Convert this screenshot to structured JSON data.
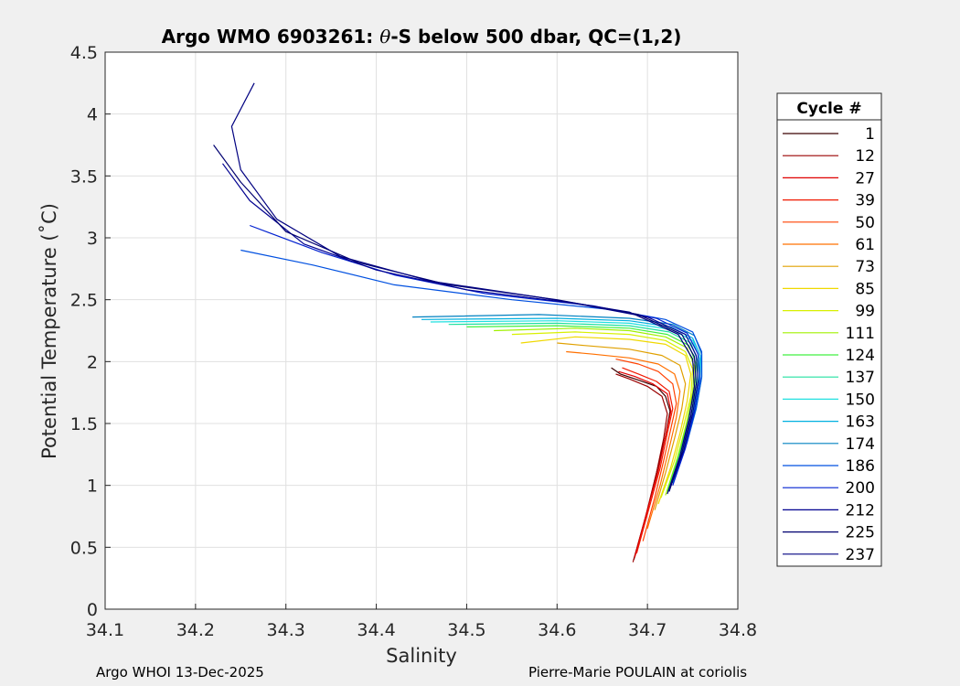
{
  "chart_data": {
    "type": "line",
    "title_prefix": "Argo WMO 6903261: ",
    "title_theta": "θ",
    "title_suffix": "-S below 500 dbar,  QC=(1,2)",
    "xlabel": "Salinity",
    "ylabel": "Potential Temperature (˚C)",
    "xlim": [
      34.1,
      34.8
    ],
    "ylim": [
      0,
      4.5
    ],
    "xticks": [
      "34.1",
      "34.2",
      "34.3",
      "34.4",
      "34.5",
      "34.6",
      "34.7",
      "34.8"
    ],
    "yticks": [
      "0",
      "0.5",
      "1",
      "1.5",
      "2",
      "2.5",
      "3",
      "3.5",
      "4",
      "4.5"
    ],
    "grid": true,
    "legend": {
      "title": "Cycle #",
      "position": "right",
      "entries": [
        {
          "label": "1",
          "color": "#3a0000"
        },
        {
          "label": "12",
          "color": "#9a0000"
        },
        {
          "label": "27",
          "color": "#e00000"
        },
        {
          "label": "39",
          "color": "#f01800"
        },
        {
          "label": "50",
          "color": "#ff4000"
        },
        {
          "label": "61",
          "color": "#ff7000"
        },
        {
          "label": "73",
          "color": "#e0a000"
        },
        {
          "label": "85",
          "color": "#f0d800"
        },
        {
          "label": "99",
          "color": "#d8f000"
        },
        {
          "label": "111",
          "color": "#a0f000"
        },
        {
          "label": "124",
          "color": "#40f040"
        },
        {
          "label": "137",
          "color": "#20e0a0"
        },
        {
          "label": "150",
          "color": "#20e0e0"
        },
        {
          "label": "163",
          "color": "#00b0e0"
        },
        {
          "label": "174",
          "color": "#0080c0"
        },
        {
          "label": "186",
          "color": "#0050e0"
        },
        {
          "label": "200",
          "color": "#0020d0"
        },
        {
          "label": "212",
          "color": "#000090"
        },
        {
          "label": "225",
          "color": "#000070"
        },
        {
          "label": "237",
          "color": "#000080"
        }
      ]
    },
    "series": [
      {
        "name": "1",
        "color": "#3a0000",
        "x": [
          34.685,
          34.7,
          34.71,
          34.72,
          34.725,
          34.72,
          34.71,
          34.69,
          34.67,
          34.66
        ],
        "y": [
          0.4,
          0.8,
          1.1,
          1.4,
          1.6,
          1.72,
          1.8,
          1.85,
          1.9,
          1.95
        ]
      },
      {
        "name": "12",
        "color": "#9a0000",
        "x": [
          34.684,
          34.698,
          34.71,
          34.718,
          34.722,
          34.716,
          34.7,
          34.68,
          34.665
        ],
        "y": [
          0.38,
          0.75,
          1.1,
          1.38,
          1.58,
          1.72,
          1.8,
          1.86,
          1.9
        ]
      },
      {
        "name": "27",
        "color": "#e00000",
        "x": [
          34.686,
          34.7,
          34.712,
          34.72,
          34.726,
          34.722,
          34.706,
          34.686,
          34.668
        ],
        "y": [
          0.42,
          0.8,
          1.12,
          1.4,
          1.6,
          1.74,
          1.82,
          1.88,
          1.92
        ]
      },
      {
        "name": "39",
        "color": "#f01800",
        "x": [
          34.688,
          34.702,
          34.714,
          34.722,
          34.728,
          34.724,
          34.71,
          34.69,
          34.672
        ],
        "y": [
          0.45,
          0.82,
          1.14,
          1.42,
          1.62,
          1.76,
          1.84,
          1.9,
          1.95
        ]
      },
      {
        "name": "50",
        "color": "#ff4000",
        "x": [
          34.695,
          34.708,
          34.718,
          34.726,
          34.732,
          34.728,
          34.712,
          34.69,
          34.665
        ],
        "y": [
          0.55,
          0.9,
          1.2,
          1.46,
          1.66,
          1.82,
          1.92,
          1.98,
          2.02
        ]
      },
      {
        "name": "61",
        "color": "#ff7000",
        "x": [
          34.7,
          34.714,
          34.724,
          34.732,
          34.736,
          34.73,
          34.712,
          34.68,
          34.64,
          34.61
        ],
        "y": [
          0.65,
          1.0,
          1.3,
          1.55,
          1.76,
          1.9,
          1.98,
          2.03,
          2.06,
          2.08
        ]
      },
      {
        "name": "73",
        "color": "#e0a000",
        "x": [
          34.708,
          34.72,
          34.73,
          34.738,
          34.742,
          34.736,
          34.716,
          34.68,
          34.63,
          34.6
        ],
        "y": [
          0.8,
          1.1,
          1.38,
          1.62,
          1.82,
          1.97,
          2.05,
          2.1,
          2.13,
          2.15
        ]
      },
      {
        "name": "85",
        "color": "#f0d800",
        "x": [
          34.712,
          34.726,
          34.736,
          34.744,
          34.748,
          34.742,
          34.72,
          34.68,
          34.62,
          34.56
        ],
        "y": [
          0.85,
          1.15,
          1.42,
          1.68,
          1.9,
          2.05,
          2.14,
          2.18,
          2.2,
          2.15
        ]
      },
      {
        "name": "99",
        "color": "#d8f000",
        "x": [
          34.715,
          34.73,
          34.74,
          34.748,
          34.75,
          34.742,
          34.72,
          34.68,
          34.62,
          34.55
        ],
        "y": [
          0.9,
          1.2,
          1.48,
          1.72,
          1.94,
          2.08,
          2.17,
          2.22,
          2.24,
          2.22
        ]
      },
      {
        "name": "111",
        "color": "#a0f000",
        "x": [
          34.72,
          34.733,
          34.743,
          34.75,
          34.752,
          34.744,
          34.72,
          34.68,
          34.62,
          34.53
        ],
        "y": [
          0.92,
          1.22,
          1.5,
          1.75,
          1.96,
          2.11,
          2.2,
          2.25,
          2.27,
          2.25
        ]
      },
      {
        "name": "124",
        "color": "#40f040",
        "x": [
          34.722,
          34.735,
          34.745,
          34.752,
          34.754,
          34.746,
          34.722,
          34.68,
          34.6,
          34.5
        ],
        "y": [
          0.95,
          1.25,
          1.52,
          1.77,
          1.98,
          2.13,
          2.22,
          2.27,
          2.29,
          2.28
        ]
      },
      {
        "name": "137",
        "color": "#20e0a0",
        "x": [
          34.725,
          34.738,
          34.748,
          34.755,
          34.756,
          34.748,
          34.724,
          34.68,
          34.6,
          34.48
        ],
        "y": [
          0.98,
          1.28,
          1.55,
          1.8,
          2.0,
          2.15,
          2.24,
          2.29,
          2.31,
          2.3
        ]
      },
      {
        "name": "150",
        "color": "#20e0e0",
        "x": [
          34.726,
          34.74,
          34.75,
          34.757,
          34.758,
          34.75,
          34.726,
          34.68,
          34.6,
          34.46
        ],
        "y": [
          1.0,
          1.3,
          1.57,
          1.82,
          2.02,
          2.17,
          2.26,
          2.31,
          2.33,
          2.32
        ]
      },
      {
        "name": "163",
        "color": "#00b0e0",
        "x": [
          34.728,
          34.742,
          34.752,
          34.758,
          34.759,
          34.75,
          34.726,
          34.68,
          34.6,
          34.45
        ],
        "y": [
          1.02,
          1.32,
          1.6,
          1.85,
          2.04,
          2.19,
          2.28,
          2.33,
          2.35,
          2.34
        ]
      },
      {
        "name": "174",
        "color": "#0080c0",
        "x": [
          34.73,
          34.744,
          34.754,
          34.76,
          34.76,
          34.752,
          34.728,
          34.68,
          34.58,
          34.44
        ],
        "y": [
          1.05,
          1.35,
          1.62,
          1.87,
          2.06,
          2.21,
          2.3,
          2.35,
          2.38,
          2.36
        ]
      },
      {
        "name": "186",
        "color": "#0050e0",
        "x": [
          34.73,
          34.744,
          34.754,
          34.76,
          34.76,
          34.75,
          34.72,
          34.66,
          34.55,
          34.42,
          34.33,
          34.25
        ],
        "y": [
          1.05,
          1.35,
          1.63,
          1.88,
          2.08,
          2.24,
          2.34,
          2.42,
          2.5,
          2.62,
          2.78,
          2.9
        ]
      },
      {
        "name": "200",
        "color": "#0020d0",
        "x": [
          34.728,
          34.742,
          34.752,
          34.758,
          34.756,
          34.744,
          34.71,
          34.64,
          34.52,
          34.42,
          34.34,
          34.26
        ],
        "y": [
          1.0,
          1.3,
          1.6,
          1.86,
          2.06,
          2.23,
          2.35,
          2.45,
          2.55,
          2.7,
          2.88,
          3.1
        ]
      },
      {
        "name": "212",
        "color": "#000090",
        "x": [
          34.725,
          34.74,
          34.75,
          34.756,
          34.754,
          34.742,
          34.7,
          34.62,
          34.5,
          34.4,
          34.32,
          34.26,
          34.23
        ],
        "y": [
          0.98,
          1.28,
          1.58,
          1.84,
          2.05,
          2.22,
          2.36,
          2.47,
          2.58,
          2.74,
          2.95,
          3.3,
          3.6
        ]
      },
      {
        "name": "225",
        "color": "#000070",
        "x": [
          34.724,
          34.738,
          34.748,
          34.754,
          34.752,
          34.738,
          34.69,
          34.6,
          34.48,
          34.38,
          34.3,
          34.25,
          34.22
        ],
        "y": [
          0.95,
          1.26,
          1.56,
          1.82,
          2.04,
          2.22,
          2.38,
          2.5,
          2.62,
          2.8,
          3.05,
          3.45,
          3.75
        ]
      },
      {
        "name": "237",
        "color": "#000080",
        "x": [
          34.722,
          34.736,
          34.746,
          34.752,
          34.75,
          34.734,
          34.68,
          34.58,
          34.46,
          34.36,
          34.29,
          34.25,
          34.24,
          34.265
        ],
        "y": [
          0.93,
          1.24,
          1.54,
          1.8,
          2.02,
          2.22,
          2.4,
          2.52,
          2.65,
          2.85,
          3.15,
          3.55,
          3.9,
          4.25
        ]
      }
    ]
  },
  "footer": {
    "left": "Argo WHOI 13-Dec-2025",
    "right": "Pierre-Marie POULAIN at coriolis"
  }
}
